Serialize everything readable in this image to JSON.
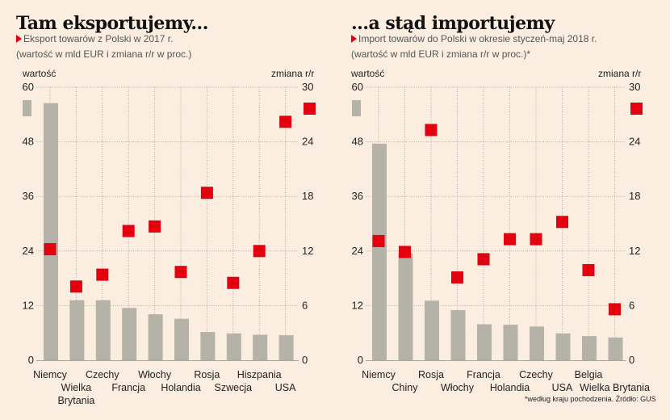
{
  "chart_data": [
    {
      "type": "bar",
      "title": "Tam eksportujemy...",
      "subtitle": "Eksport towarów z Polski w 2017 r.",
      "subtitle2": "(wartość w mld EUR i zmiana r/r w proc.)",
      "ylabel_left": "wartość",
      "ylabel_right": "zmiana r/r",
      "ylim": [
        0,
        60
      ],
      "ylim_right": [
        0,
        30
      ],
      "yticks_left": [
        "0",
        "12",
        "24",
        "36",
        "48",
        "60"
      ],
      "yticks_right": [
        "0",
        "6",
        "12",
        "18",
        "24",
        "30"
      ],
      "grid": true,
      "categories": [
        "Niemcy",
        "Wielka Brytania",
        "Czechy",
        "Francja",
        "Włochy",
        "Holandia",
        "Rosja",
        "Szwecja",
        "Hiszpania",
        "USA"
      ],
      "category_lines": [
        [
          "Niemcy"
        ],
        [
          "Wielka",
          "Brytania"
        ],
        [
          "Czechy"
        ],
        [
          "Francja"
        ],
        [
          "Włochy"
        ],
        [
          "Holandia"
        ],
        [
          "Rosja"
        ],
        [
          "Szwecja"
        ],
        [
          "Hiszpania"
        ],
        [
          "USA"
        ]
      ],
      "series": [
        {
          "name": "wartość",
          "type": "bar",
          "axis": "left",
          "color": "#b5b3a8",
          "values": [
            56.5,
            13.2,
            13.2,
            11.5,
            10.1,
            9.1,
            6.2,
            5.9,
            5.6,
            5.5
          ]
        },
        {
          "name": "zmiana r/r",
          "type": "scatter",
          "axis": "right",
          "color": "#e3000f",
          "values": [
            12.2,
            8.1,
            9.4,
            14.2,
            14.7,
            9.7,
            18.4,
            8.5,
            12.0,
            26.2
          ]
        }
      ],
      "footnote": ""
    },
    {
      "type": "bar",
      "title": "...a stąd importujemy",
      "subtitle": "Import towarów do Polski w okresie styczeń-maj 2018 r.",
      "subtitle2": "(wartość w mld EUR i zmiana r/r w proc.)*",
      "ylabel_left": "wartość",
      "ylabel_right": "zmiana r/r",
      "ylim": [
        0,
        60
      ],
      "ylim_right": [
        0,
        30
      ],
      "yticks_left": [
        "0",
        "12",
        "24",
        "36",
        "48",
        "60"
      ],
      "yticks_right": [
        "0",
        "6",
        "12",
        "18",
        "24",
        "30"
      ],
      "grid": true,
      "categories": [
        "Niemcy",
        "Chiny",
        "Rosja",
        "Włochy",
        "Francja",
        "Holandia",
        "Czechy",
        "USA",
        "Belgia",
        "Wielka Brytania"
      ],
      "category_lines": [
        [
          "Niemcy"
        ],
        [
          "Chiny"
        ],
        [
          "Rosja"
        ],
        [
          "Włochy"
        ],
        [
          "Francja"
        ],
        [
          "Holandia"
        ],
        [
          "Czechy"
        ],
        [
          "USA"
        ],
        [
          "Belgia"
        ],
        [
          "Wielka Brytania"
        ]
      ],
      "series": [
        {
          "name": "wartość",
          "type": "bar",
          "axis": "left",
          "color": "#b5b3a8",
          "values": [
            47.6,
            23.5,
            13.1,
            11.0,
            7.9,
            7.8,
            7.4,
            5.9,
            5.3,
            5.0
          ]
        },
        {
          "name": "zmiana r/r",
          "type": "scatter",
          "axis": "right",
          "color": "#e3000f",
          "values": [
            13.1,
            11.9,
            25.3,
            9.1,
            11.1,
            13.3,
            13.3,
            15.2,
            9.9,
            5.6
          ]
        }
      ],
      "footnote": "*według kraju pochodzenia. Źródło: GUS"
    }
  ]
}
